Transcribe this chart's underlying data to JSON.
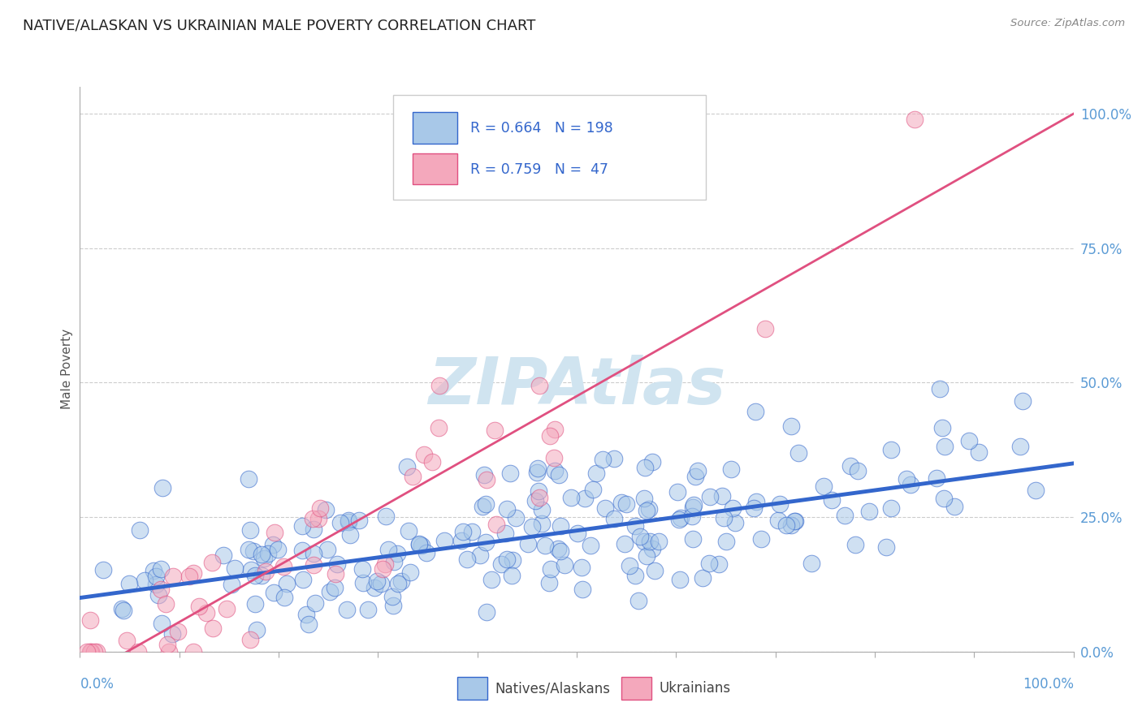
{
  "title": "NATIVE/ALASKAN VS UKRAINIAN MALE POVERTY CORRELATION CHART",
  "source_text": "Source: ZipAtlas.com",
  "ylabel": "Male Poverty",
  "y_tick_labels": [
    "0.0%",
    "25.0%",
    "50.0%",
    "75.0%",
    "100.0%"
  ],
  "y_tick_values": [
    0.0,
    0.25,
    0.5,
    0.75,
    1.0
  ],
  "legend_labels": [
    "Natives/Alaskans",
    "Ukrainians"
  ],
  "blue_R": 0.664,
  "blue_N": 198,
  "pink_R": 0.759,
  "pink_N": 47,
  "blue_color": "#a8c8e8",
  "pink_color": "#f4a8bc",
  "blue_line_color": "#3366cc",
  "pink_line_color": "#e05080",
  "title_color": "#222222",
  "axis_label_color": "#5b9bd5",
  "legend_R_color": "#3366cc",
  "watermark_color": "#d0e4f0",
  "background_color": "#ffffff",
  "grid_color": "#cccccc",
  "blue_slope": 0.25,
  "blue_intercept": 0.1,
  "pink_slope": 1.05,
  "pink_intercept": -0.05,
  "xlim": [
    0.0,
    1.0
  ],
  "ylim": [
    0.0,
    1.05
  ]
}
